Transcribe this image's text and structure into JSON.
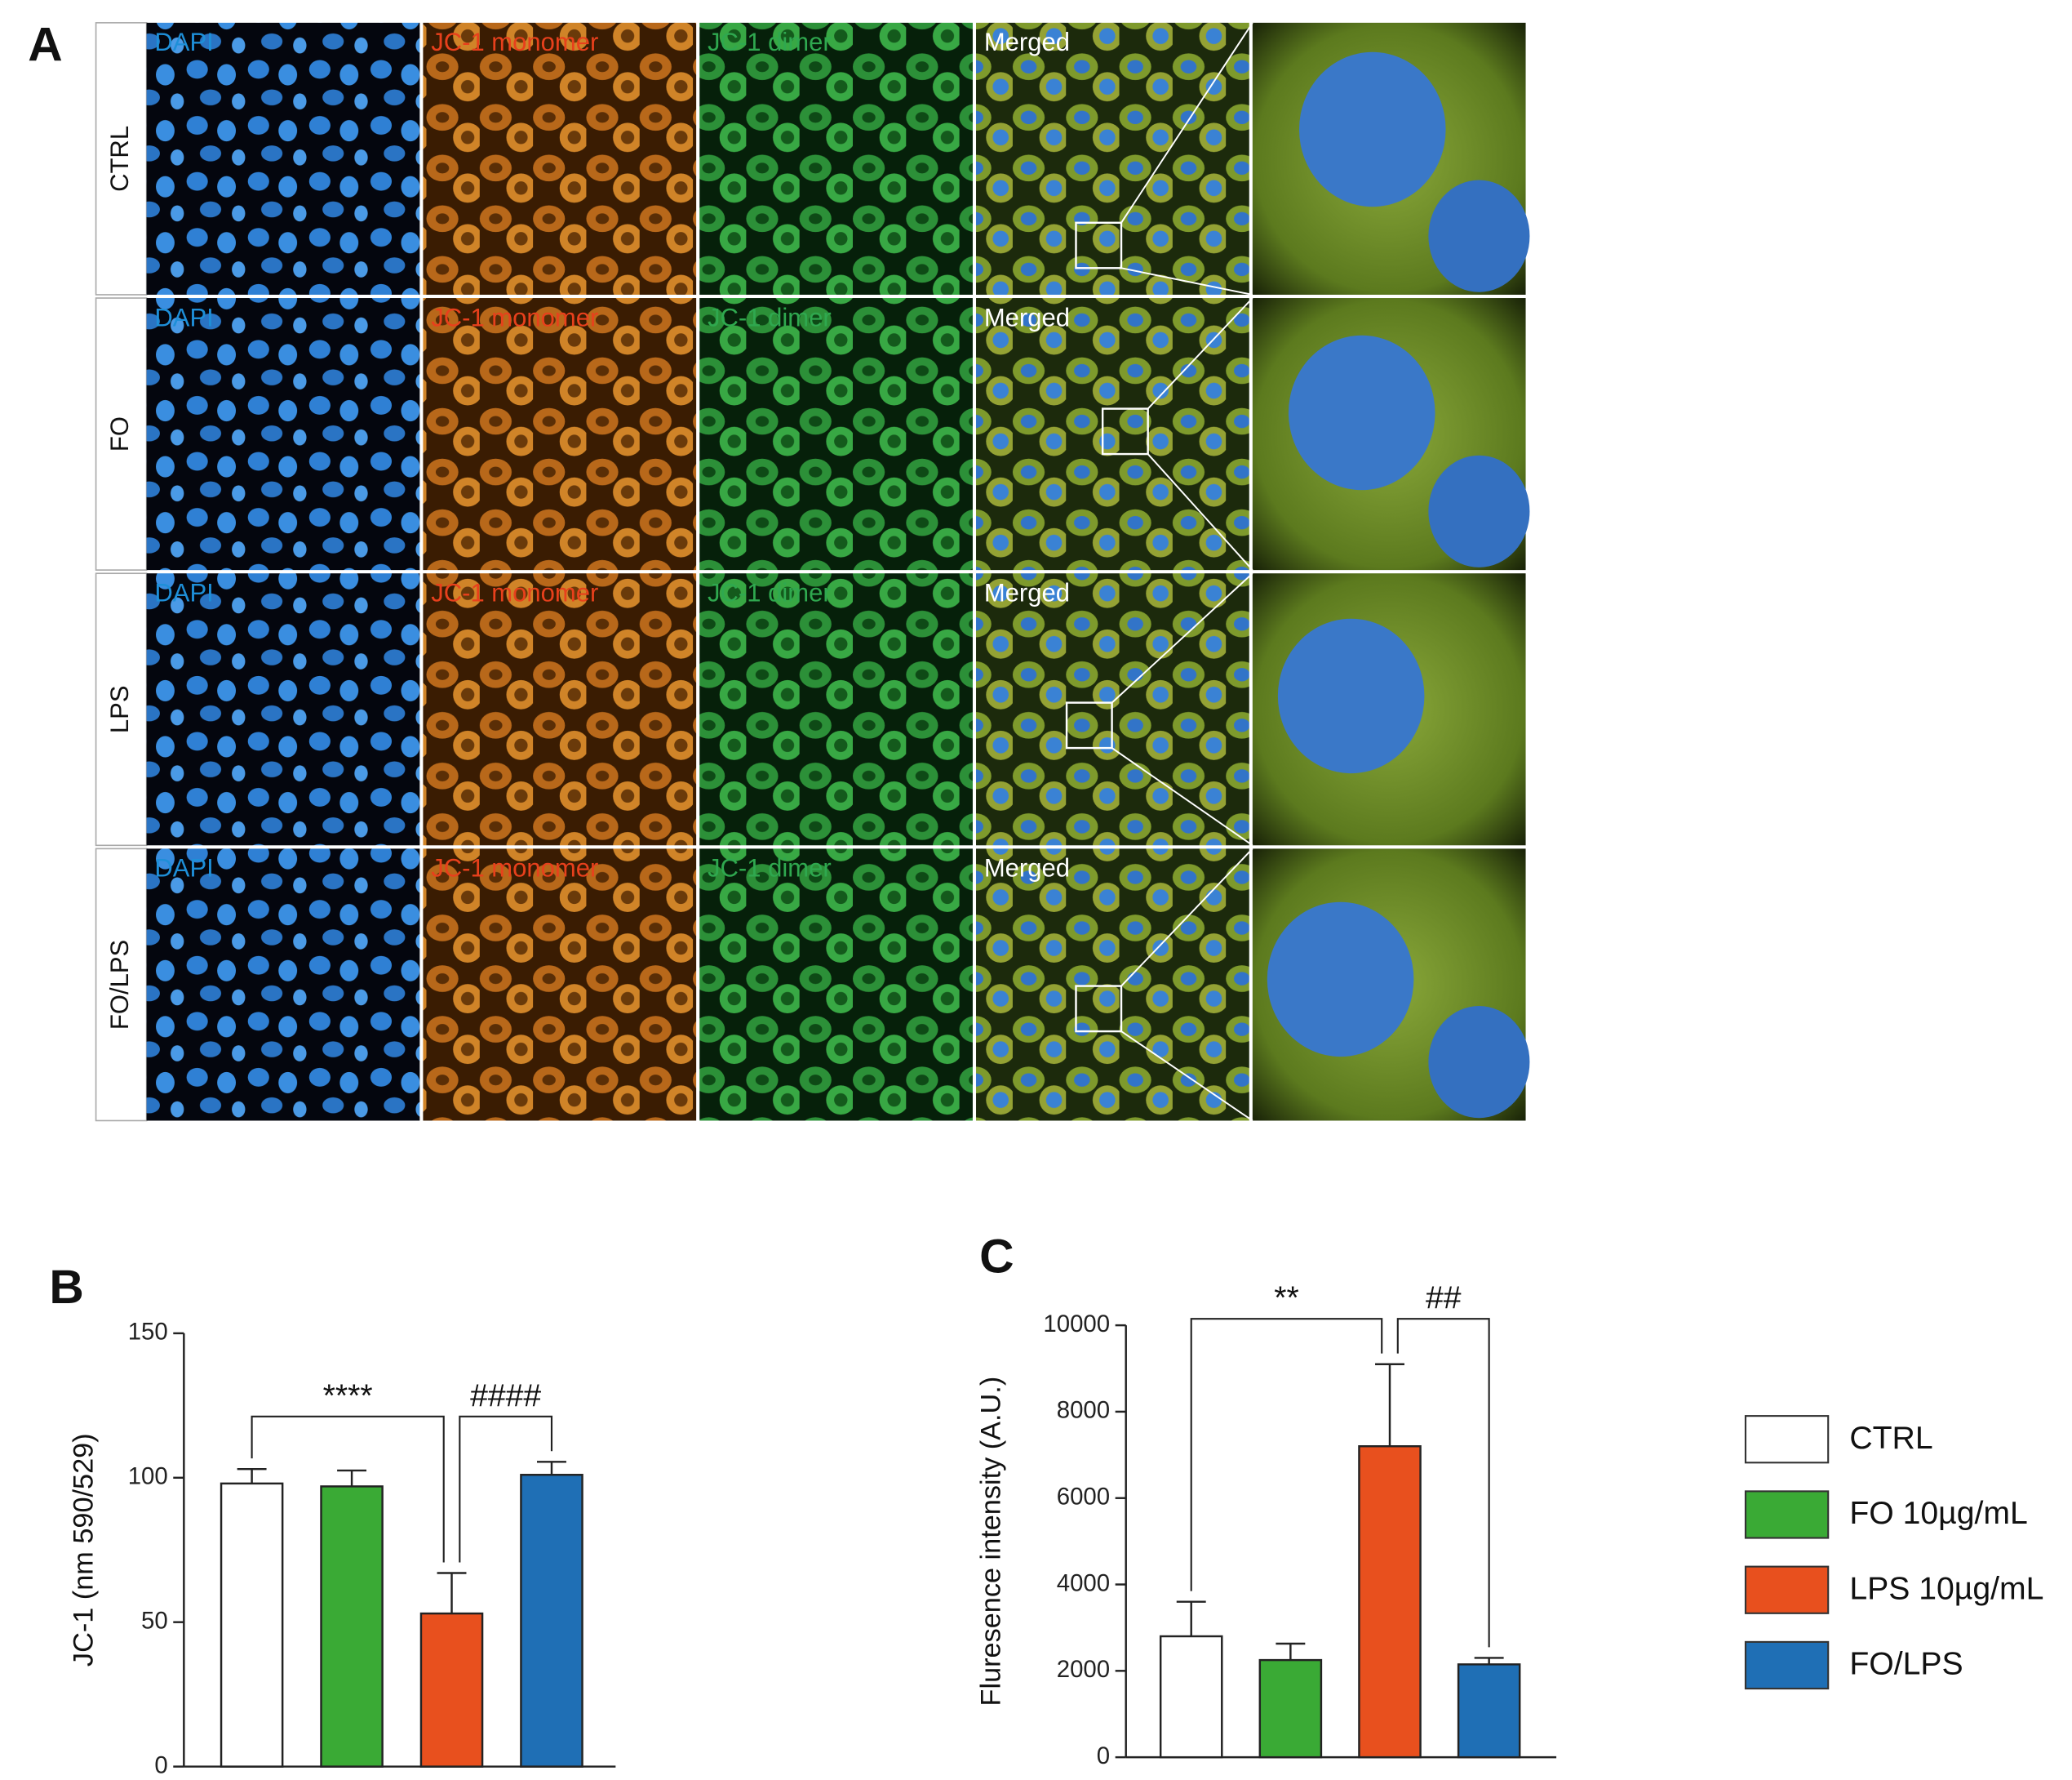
{
  "panel_a": {
    "label": "A",
    "rows": [
      "CTRL",
      "FO",
      "LPS",
      "FO/LPS"
    ],
    "channels": [
      "DAPI",
      "JC-1 monomer",
      "JC-1 dimer",
      "Merged"
    ],
    "channel_colors": [
      "#1e8fd8",
      "#e8401c",
      "#2fa84f",
      "#ffffff"
    ]
  },
  "legend": [
    "CTRL",
    "FO 10µg/mL",
    "LPS 10µg/mL",
    "FO/LPS"
  ],
  "chart_data": [
    {
      "type": "bar",
      "panel_label": "B",
      "ylabel": "JC-1 (nm 590/529)",
      "categories": [
        null,
        null,
        null,
        null
      ],
      "values": [
        98,
        97,
        53,
        101
      ],
      "errors": [
        5,
        5.5,
        14,
        4.5
      ],
      "colors": [
        "#ffffff",
        "#3aaa35",
        "#e8501e",
        "#1f6fb5"
      ],
      "ylim": [
        0,
        150
      ],
      "yticks": [
        0,
        50,
        100,
        150
      ],
      "annotations": [
        {
          "text": "****",
          "bars": [
            0,
            2
          ]
        },
        {
          "text": "####",
          "bars": [
            2,
            3
          ]
        }
      ]
    },
    {
      "type": "bar",
      "panel_label": "C",
      "ylabel": "Fluresence intensity (A.U.)",
      "categories": [
        null,
        null,
        null,
        null
      ],
      "values": [
        2800,
        2250,
        7200,
        2150
      ],
      "errors": [
        800,
        380,
        1900,
        150
      ],
      "colors": [
        "#ffffff",
        "#3aaa35",
        "#e8501e",
        "#1f6fb5"
      ],
      "ylim": [
        0,
        10000
      ],
      "yticks": [
        0,
        2000,
        4000,
        6000,
        8000,
        10000
      ],
      "annotations": [
        {
          "text": "**",
          "bars": [
            0,
            2
          ]
        },
        {
          "text": "##",
          "bars": [
            2,
            3
          ]
        }
      ]
    }
  ]
}
